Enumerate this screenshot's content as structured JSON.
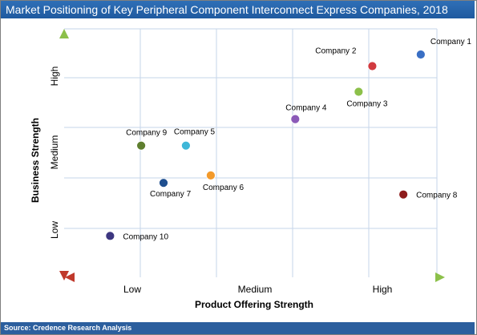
{
  "title": "Market Positioning of Key Peripheral Component Interconnect Express Companies, 2018",
  "source": "Source: Credence Research Analysis",
  "chart_data": {
    "type": "scatter",
    "xlabel": "Product Offering Strength",
    "ylabel": "Business Strength",
    "x_ticks": [
      "Low",
      "Medium",
      "High"
    ],
    "y_ticks": [
      "Low",
      "Medium",
      "High"
    ],
    "xlim": [
      0,
      3
    ],
    "ylim": [
      0,
      3
    ],
    "grid": true,
    "points": [
      {
        "label": "Company 1",
        "x": 2.87,
        "y": 2.69,
        "color": "#3a6fc4"
      },
      {
        "label": "Company 2",
        "x": 2.48,
        "y": 2.55,
        "color": "#d13a3f"
      },
      {
        "label": "Company 3",
        "x": 2.37,
        "y": 2.24,
        "color": "#8cc04a"
      },
      {
        "label": "Company 4",
        "x": 1.86,
        "y": 1.91,
        "color": "#8b5ab8"
      },
      {
        "label": "Company 5",
        "x": 0.98,
        "y": 1.59,
        "color": "#3fb7d8"
      },
      {
        "label": "Company 6",
        "x": 1.18,
        "y": 1.23,
        "color": "#f39a2b"
      },
      {
        "label": "Company 7",
        "x": 0.8,
        "y": 1.14,
        "color": "#1f4f8f"
      },
      {
        "label": "Company 8",
        "x": 2.73,
        "y": 1.0,
        "color": "#8e1c1c"
      },
      {
        "label": "Company 9",
        "x": 0.62,
        "y": 1.59,
        "color": "#5f7f2f"
      },
      {
        "label": "Company 10",
        "x": 0.37,
        "y": 0.5,
        "color": "#3d3780"
      }
    ]
  }
}
